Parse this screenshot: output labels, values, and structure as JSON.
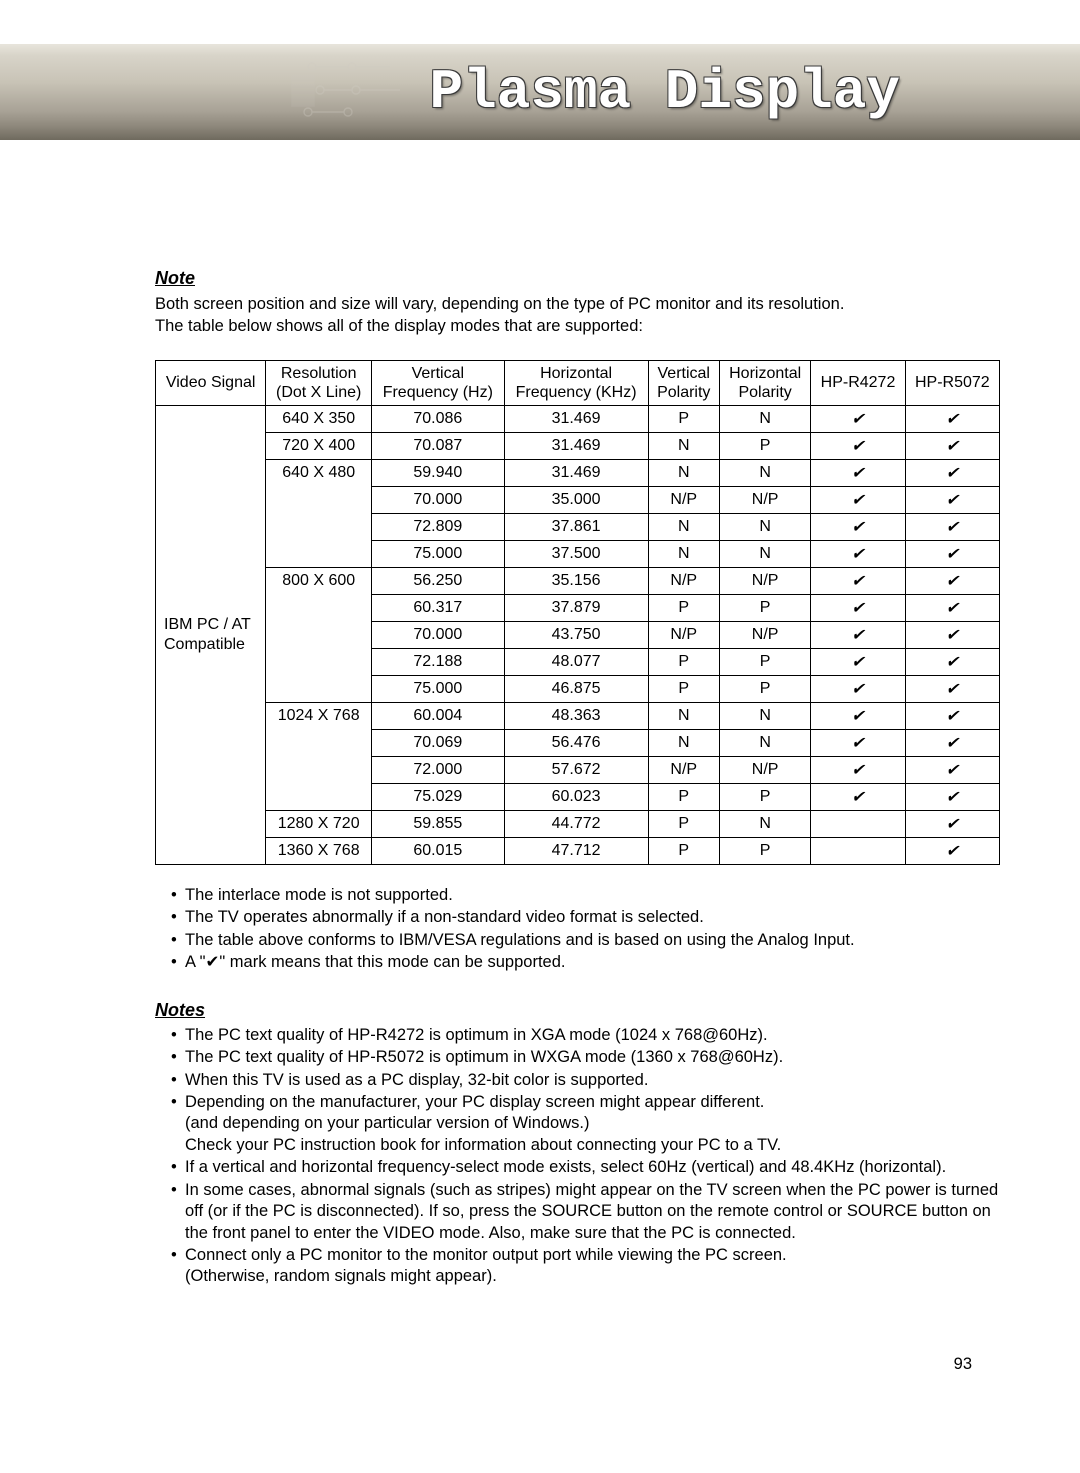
{
  "banner": {
    "title": "Plasma Display"
  },
  "section": {
    "note_heading": "Note",
    "intro_line1": "Both screen position and size will vary, depending on the type of PC monitor and its resolution.",
    "intro_line2": "The table below shows all of the display modes that are supported:",
    "notes_heading": "Notes"
  },
  "table": {
    "headers": {
      "video_signal": "Video Signal",
      "resolution": "Resolution\n(Dot X Line)",
      "vfreq": "Vertical\nFrequency (Hz)",
      "hfreq": "Horizontal\nFrequency (KHz)",
      "vpol": "Vertical\nPolarity",
      "hpol": "Horizontal\nPolarity",
      "r4272": "HP-R4272",
      "r5072": "HP-R5072"
    },
    "signal_label": "IBM PC / AT\nCompatible",
    "groups": [
      {
        "resolution": "640 X 350",
        "rows": [
          {
            "vf": "70.086",
            "hf": "31.469",
            "vp": "P",
            "hp": "N",
            "a": "✔",
            "b": "✔"
          }
        ]
      },
      {
        "resolution": "720 X 400",
        "rows": [
          {
            "vf": "70.087",
            "hf": "31.469",
            "vp": "N",
            "hp": "P",
            "a": "✔",
            "b": "✔"
          }
        ]
      },
      {
        "resolution": "640 X 480",
        "rows": [
          {
            "vf": "59.940",
            "hf": "31.469",
            "vp": "N",
            "hp": "N",
            "a": "✔",
            "b": "✔"
          },
          {
            "vf": "70.000",
            "hf": "35.000",
            "vp": "N/P",
            "hp": "N/P",
            "a": "✔",
            "b": "✔"
          },
          {
            "vf": "72.809",
            "hf": "37.861",
            "vp": "N",
            "hp": "N",
            "a": "✔",
            "b": "✔"
          },
          {
            "vf": "75.000",
            "hf": "37.500",
            "vp": "N",
            "hp": "N",
            "a": "✔",
            "b": "✔"
          }
        ]
      },
      {
        "resolution": "800 X 600",
        "rows": [
          {
            "vf": "56.250",
            "hf": "35.156",
            "vp": "N/P",
            "hp": "N/P",
            "a": "✔",
            "b": "✔"
          },
          {
            "vf": "60.317",
            "hf": "37.879",
            "vp": "P",
            "hp": "P",
            "a": "✔",
            "b": "✔"
          },
          {
            "vf": "70.000",
            "hf": "43.750",
            "vp": "N/P",
            "hp": "N/P",
            "a": "✔",
            "b": "✔"
          },
          {
            "vf": "72.188",
            "hf": "48.077",
            "vp": "P",
            "hp": "P",
            "a": "✔",
            "b": "✔"
          },
          {
            "vf": "75.000",
            "hf": "46.875",
            "vp": "P",
            "hp": "P",
            "a": "✔",
            "b": "✔"
          }
        ]
      },
      {
        "resolution": "1024 X 768",
        "rows": [
          {
            "vf": "60.004",
            "hf": "48.363",
            "vp": "N",
            "hp": "N",
            "a": "✔",
            "b": "✔"
          },
          {
            "vf": "70.069",
            "hf": "56.476",
            "vp": "N",
            "hp": "N",
            "a": "✔",
            "b": "✔"
          },
          {
            "vf": "72.000",
            "hf": "57.672",
            "vp": "N/P",
            "hp": "N/P",
            "a": "✔",
            "b": "✔"
          },
          {
            "vf": "75.029",
            "hf": "60.023",
            "vp": "P",
            "hp": "P",
            "a": "✔",
            "b": "✔"
          }
        ]
      },
      {
        "resolution": "1280 X 720",
        "rows": [
          {
            "vf": "59.855",
            "hf": "44.772",
            "vp": "P",
            "hp": "N",
            "a": "",
            "b": "✔"
          }
        ]
      },
      {
        "resolution": "1360 X 768",
        "rows": [
          {
            "vf": "60.015",
            "hf": "47.712",
            "vp": "P",
            "hp": "P",
            "a": "",
            "b": "✔"
          }
        ]
      }
    ]
  },
  "bullets1": [
    "The interlace mode is not supported.",
    "The TV operates abnormally if a non-standard video format is selected.",
    "The table above conforms to IBM/VESA regulations and is based on using the Analog Input.",
    "A \"✔\" mark means that this mode can be supported."
  ],
  "bullets2": [
    "The PC text quality of HP-R4272 is optimum in XGA mode (1024 x 768@60Hz).",
    "The PC text quality of HP-R5072 is optimum in WXGA mode (1360 x 768@60Hz).",
    "When this TV is used as a PC display, 32-bit color is supported.",
    "Depending on the manufacturer, your PC display screen might appear different.\n(and depending on your particular version of Windows.)\nCheck your PC instruction book for information about connecting your PC to a TV.",
    "If a vertical and horizontal frequency-select mode exists, select 60Hz (vertical) and 48.4KHz (horizontal).",
    "In some cases, abnormal signals (such as stripes) might appear on the TV screen when the PC power is turned off (or if the PC is disconnected). If so, press the SOURCE button on the remote control or SOURCE button on the front panel to enter the VIDEO mode. Also, make sure that the PC is connected.",
    "Connect only a PC monitor to the monitor output port while viewing the PC screen.\n(Otherwise, random signals might appear)."
  ],
  "page_number": "93"
}
